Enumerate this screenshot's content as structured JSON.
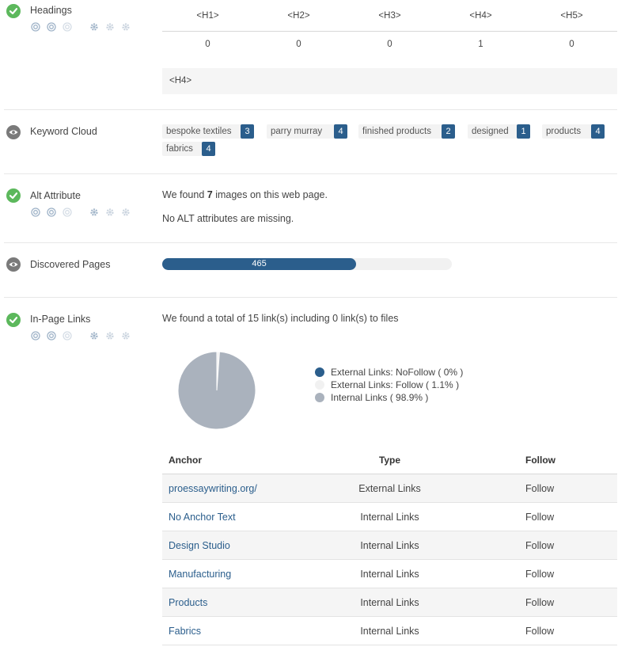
{
  "colors": {
    "ok": "#5cb85c",
    "info": "#7a7a7a",
    "accent": "#2b5e8c",
    "pie_internal": "#aab2bd",
    "pie_ext_follow": "#f1f1f1"
  },
  "headings": {
    "title": "Headings",
    "columns": [
      "<H1>",
      "<H2>",
      "<H3>",
      "<H4>",
      "<H5>"
    ],
    "counts": [
      "0",
      "0",
      "0",
      "1",
      "0"
    ],
    "used": "<H4>"
  },
  "keyword_cloud": {
    "title": "Keyword Cloud",
    "keywords": [
      {
        "word": "bespoke textiles",
        "count": "3"
      },
      {
        "word": "parry murray",
        "count": "4"
      },
      {
        "word": "finished products",
        "count": "2"
      },
      {
        "word": "designed",
        "count": "1"
      },
      {
        "word": "products",
        "count": "4"
      },
      {
        "word": "fabrics",
        "count": "4"
      }
    ]
  },
  "alt_attribute": {
    "title": "Alt Attribute",
    "found_prefix": "We found ",
    "found_count": "7",
    "found_suffix": " images on this web page.",
    "missing_text": "No ALT attributes are missing."
  },
  "discovered_pages": {
    "title": "Discovered Pages",
    "value": "465",
    "fill_fraction": 0.67
  },
  "in_page_links": {
    "title": "In-Page Links",
    "summary": "We found a total of 15 link(s) including 0 link(s) to files",
    "chart_data": {
      "type": "pie",
      "title": "",
      "labels": [
        "External Links: NoFollow ( 0% )",
        "External Links: Follow ( 1.1% )",
        "Internal Links ( 98.9% )"
      ],
      "values": [
        0,
        1.1,
        98.9
      ],
      "colors": [
        "#2b5e8c",
        "#f1f1f1",
        "#aab2bd"
      ]
    },
    "table": {
      "headers": {
        "anchor": "Anchor",
        "type": "Type",
        "follow": "Follow"
      },
      "rows": [
        {
          "anchor": "proessaywriting.org/",
          "type": "External Links",
          "follow": "Follow"
        },
        {
          "anchor": "No Anchor Text",
          "type": "Internal Links",
          "follow": "Follow"
        },
        {
          "anchor": "Design Studio",
          "type": "Internal Links",
          "follow": "Follow"
        },
        {
          "anchor": "Manufacturing",
          "type": "Internal Links",
          "follow": "Follow"
        },
        {
          "anchor": "Products",
          "type": "Internal Links",
          "follow": "Follow"
        },
        {
          "anchor": "Fabrics",
          "type": "Internal Links",
          "follow": "Follow"
        }
      ]
    }
  }
}
